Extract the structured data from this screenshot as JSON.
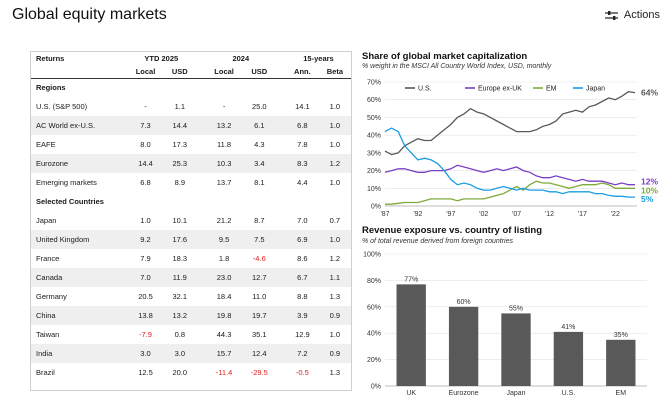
{
  "page": {
    "title": "Global equity markets",
    "actions_label": "Actions"
  },
  "table": {
    "header_groups": [
      "Returns",
      "YTD 2025",
      "2024",
      "15-years"
    ],
    "sub_headers": [
      "Local",
      "USD",
      "Local",
      "USD",
      "Ann.",
      "Beta"
    ],
    "sections": [
      {
        "title": "Regions",
        "rows": [
          [
            "U.S. (S&P 500)",
            "-",
            "1.1",
            "-",
            "25.0",
            "14.1",
            "1.0"
          ],
          [
            "AC World ex-U.S.",
            "7.3",
            "14.4",
            "13.2",
            "6.1",
            "6.8",
            "1.0"
          ],
          [
            "EAFE",
            "8.0",
            "17.3",
            "11.8",
            "4.3",
            "7.8",
            "1.0"
          ],
          [
            "Eurozone",
            "14.4",
            "25.3",
            "10.3",
            "3.4",
            "8.3",
            "1.2"
          ],
          [
            "Emerging markets",
            "6.8",
            "8.9",
            "13.7",
            "8.1",
            "4.4",
            "1.0"
          ]
        ]
      },
      {
        "title": "Selected Countries",
        "rows": [
          [
            "Japan",
            "1.0",
            "10.1",
            "21.2",
            "8.7",
            "7.0",
            "0.7"
          ],
          [
            "United Kingdom",
            "9.2",
            "17.6",
            "9.5",
            "7.5",
            "6.9",
            "1.0"
          ],
          [
            "France",
            "7.9",
            "18.3",
            "1.8",
            "-4.6",
            "8.6",
            "1.2"
          ],
          [
            "Canada",
            "7.0",
            "11.9",
            "23.0",
            "12.7",
            "6.7",
            "1.1"
          ],
          [
            "Germany",
            "20.5",
            "32.1",
            "18.4",
            "11.0",
            "8.8",
            "1.3"
          ],
          [
            "China",
            "13.8",
            "13.2",
            "19.8",
            "19.7",
            "3.9",
            "0.9"
          ],
          [
            "Taiwan",
            "-7.9",
            "0.8",
            "44.3",
            "35.1",
            "12.9",
            "1.0"
          ],
          [
            "India",
            "3.0",
            "3.0",
            "15.7",
            "12.4",
            "7.2",
            "0.9"
          ],
          [
            "Brazil",
            "12.5",
            "20.0",
            "-11.4",
            "-29.5",
            "-0.5",
            "1.3"
          ]
        ]
      }
    ],
    "negative_color": "#e02020"
  },
  "chart_data": [
    {
      "type": "line",
      "title": "Share of global market capitalization",
      "subtitle": "% weight in the MSCI All Country World Index, USD, monthly",
      "x_tick_labels": [
        "'87",
        "'92",
        "'97",
        "'02",
        "'07",
        "'12",
        "'17",
        "'22"
      ],
      "x_ticks": [
        1987,
        1992,
        1997,
        2002,
        2007,
        2012,
        2017,
        2022
      ],
      "xlim": [
        1987,
        2025.3
      ],
      "ylim": [
        0,
        70
      ],
      "y_ticks": [
        0,
        10,
        20,
        30,
        40,
        50,
        60,
        70
      ],
      "y_tick_labels": [
        "0%",
        "10%",
        "20%",
        "30%",
        "40%",
        "50%",
        "60%",
        "70%"
      ],
      "legend_position": "top",
      "series": [
        {
          "name": "U.S.",
          "color": "#595959",
          "end_label": "64%",
          "points": [
            [
              1987,
              31
            ],
            [
              1988,
              29
            ],
            [
              1989,
              30
            ],
            [
              1990,
              34
            ],
            [
              1991,
              36
            ],
            [
              1992,
              38
            ],
            [
              1993,
              37
            ],
            [
              1994,
              37
            ],
            [
              1995,
              40
            ],
            [
              1996,
              43
            ],
            [
              1997,
              46
            ],
            [
              1998,
              50
            ],
            [
              1999,
              52
            ],
            [
              2000,
              55
            ],
            [
              2001,
              53
            ],
            [
              2002,
              52
            ],
            [
              2003,
              50
            ],
            [
              2004,
              48
            ],
            [
              2005,
              46
            ],
            [
              2006,
              44
            ],
            [
              2007,
              42
            ],
            [
              2008,
              42
            ],
            [
              2009,
              42
            ],
            [
              2010,
              43
            ],
            [
              2011,
              45
            ],
            [
              2012,
              46
            ],
            [
              2013,
              48
            ],
            [
              2014,
              52
            ],
            [
              2015,
              53
            ],
            [
              2016,
              54
            ],
            [
              2017,
              53
            ],
            [
              2018,
              56
            ],
            [
              2019,
              57
            ],
            [
              2020,
              59
            ],
            [
              2021,
              61
            ],
            [
              2022,
              60
            ],
            [
              2023,
              62
            ],
            [
              2024,
              64.5
            ],
            [
              2025,
              64
            ]
          ]
        },
        {
          "name": "Europe ex-UK",
          "color": "#7b3fc4",
          "end_label": "12%",
          "points": [
            [
              1987,
              19
            ],
            [
              1988,
              20
            ],
            [
              1989,
              21
            ],
            [
              1990,
              21
            ],
            [
              1991,
              20
            ],
            [
              1992,
              19
            ],
            [
              1993,
              19
            ],
            [
              1994,
              20
            ],
            [
              1995,
              20
            ],
            [
              1996,
              20
            ],
            [
              1997,
              21
            ],
            [
              1998,
              23
            ],
            [
              1999,
              22
            ],
            [
              2000,
              21
            ],
            [
              2001,
              20
            ],
            [
              2002,
              19
            ],
            [
              2003,
              20
            ],
            [
              2004,
              21
            ],
            [
              2005,
              20
            ],
            [
              2006,
              21
            ],
            [
              2007,
              22
            ],
            [
              2008,
              20
            ],
            [
              2009,
              19
            ],
            [
              2010,
              17
            ],
            [
              2011,
              16
            ],
            [
              2012,
              16
            ],
            [
              2013,
              17
            ],
            [
              2014,
              16
            ],
            [
              2015,
              15
            ],
            [
              2016,
              14
            ],
            [
              2017,
              15
            ],
            [
              2018,
              14
            ],
            [
              2019,
              14
            ],
            [
              2020,
              14
            ],
            [
              2021,
              13
            ],
            [
              2022,
              12
            ],
            [
              2023,
              13
            ],
            [
              2024,
              12
            ],
            [
              2025,
              12
            ]
          ]
        },
        {
          "name": "EM",
          "color": "#7faa3a",
          "end_label": "10%",
          "points": [
            [
              1987,
              1
            ],
            [
              1988,
              1
            ],
            [
              1989,
              1.5
            ],
            [
              1990,
              2
            ],
            [
              1991,
              2
            ],
            [
              1992,
              2
            ],
            [
              1993,
              3
            ],
            [
              1994,
              4
            ],
            [
              1995,
              4
            ],
            [
              1996,
              4
            ],
            [
              1997,
              4
            ],
            [
              1998,
              3
            ],
            [
              1999,
              4
            ],
            [
              2000,
              4
            ],
            [
              2001,
              4
            ],
            [
              2002,
              4
            ],
            [
              2003,
              5
            ],
            [
              2004,
              6
            ],
            [
              2005,
              7
            ],
            [
              2006,
              9
            ],
            [
              2007,
              11
            ],
            [
              2008,
              9
            ],
            [
              2009,
              12
            ],
            [
              2010,
              14
            ],
            [
              2011,
              13
            ],
            [
              2012,
              13
            ],
            [
              2013,
              12
            ],
            [
              2014,
              11
            ],
            [
              2015,
              10
            ],
            [
              2016,
              11
            ],
            [
              2017,
              12
            ],
            [
              2018,
              12
            ],
            [
              2019,
              12
            ],
            [
              2020,
              13
            ],
            [
              2021,
              12
            ],
            [
              2022,
              10
            ],
            [
              2023,
              10
            ],
            [
              2024,
              10
            ],
            [
              2025,
              10
            ]
          ]
        },
        {
          "name": "Japan",
          "color": "#1a9de0",
          "end_label": "5%",
          "points": [
            [
              1987,
              42
            ],
            [
              1988,
              44
            ],
            [
              1989,
              42
            ],
            [
              1990,
              34
            ],
            [
              1991,
              30
            ],
            [
              1992,
              26
            ],
            [
              1993,
              27
            ],
            [
              1994,
              26
            ],
            [
              1995,
              24
            ],
            [
              1996,
              20
            ],
            [
              1997,
              15
            ],
            [
              1998,
              12
            ],
            [
              1999,
              13
            ],
            [
              2000,
              12
            ],
            [
              2001,
              10
            ],
            [
              2002,
              9
            ],
            [
              2003,
              9
            ],
            [
              2004,
              10
            ],
            [
              2005,
              11
            ],
            [
              2006,
              10
            ],
            [
              2007,
              9
            ],
            [
              2008,
              10
            ],
            [
              2009,
              9
            ],
            [
              2010,
              9
            ],
            [
              2011,
              9
            ],
            [
              2012,
              8
            ],
            [
              2013,
              8
            ],
            [
              2014,
              7
            ],
            [
              2015,
              8
            ],
            [
              2016,
              8
            ],
            [
              2017,
              8
            ],
            [
              2018,
              8
            ],
            [
              2019,
              7
            ],
            [
              2020,
              7
            ],
            [
              2021,
              6
            ],
            [
              2022,
              5.5
            ],
            [
              2023,
              5.5
            ],
            [
              2024,
              5
            ],
            [
              2025,
              5
            ]
          ]
        }
      ]
    },
    {
      "type": "bar",
      "title": "Revenue exposure vs. country of listing",
      "subtitle": "% of total revenue derived from foreign countries",
      "categories": [
        "UK",
        "Eurozone",
        "Japan",
        "U.S.",
        "EM"
      ],
      "values": [
        77,
        60,
        55,
        41,
        35
      ],
      "data_labels": [
        "77%",
        "60%",
        "55%",
        "41%",
        "35%"
      ],
      "ylim": [
        0,
        100
      ],
      "y_ticks": [
        0,
        20,
        40,
        60,
        80,
        100
      ],
      "y_tick_labels": [
        "0%",
        "20%",
        "40%",
        "60%",
        "80%",
        "100%"
      ],
      "bar_color": "#595959"
    }
  ]
}
